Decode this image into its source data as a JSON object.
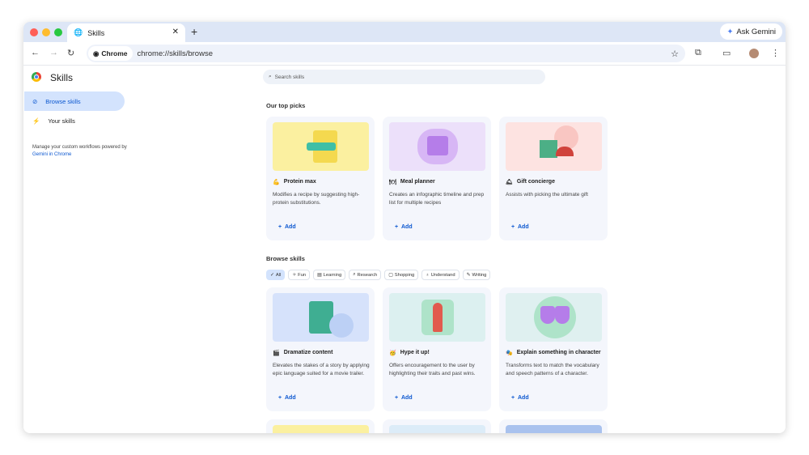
{
  "browser": {
    "tab_title": "Skills",
    "url_chip": "Chrome",
    "url": "chrome://skills/browse",
    "ask_gemini": "Ask Gemini"
  },
  "sidebar": {
    "title": "Skills",
    "items": [
      {
        "label": "Browse skills",
        "icon": "compass-icon",
        "active": true
      },
      {
        "label": "Your skills",
        "icon": "bolt-icon",
        "active": false
      }
    ],
    "note": "Manage your custom workflows powered by",
    "note_link": "Gemini in Chrome"
  },
  "search": {
    "placeholder": "Search skills"
  },
  "top_picks": {
    "heading": "Our top picks",
    "cards": [
      {
        "emoji": "💪",
        "title": "Protein max",
        "desc": "Modifies a recipe by suggesting high-protein substitutions.",
        "add": "Add",
        "color": "#fbf0a0"
      },
      {
        "emoji": "🍽",
        "title": "Meal planner",
        "desc": "Creates an infographic timeline and prep list for multiple recipes",
        "add": "Add",
        "color": "#ece0fa"
      },
      {
        "emoji": "🛎",
        "title": "Gift concierge",
        "desc": "Assists with picking the ultimate gift",
        "add": "Add",
        "color": "#fde3e1"
      }
    ]
  },
  "browse": {
    "heading": "Browse skills",
    "filters": [
      {
        "label": "All",
        "icon": "✓",
        "selected": true
      },
      {
        "label": "Fun",
        "icon": "✧"
      },
      {
        "label": "Learning",
        "icon": "▤"
      },
      {
        "label": "Research",
        "icon": "⌕"
      },
      {
        "label": "Shopping",
        "icon": "▢"
      },
      {
        "label": "Understand",
        "icon": "♁"
      },
      {
        "label": "Writing",
        "icon": "✎"
      }
    ],
    "cards": [
      {
        "emoji": "🎬",
        "title": "Dramatize content",
        "desc": "Elevates the stakes of a story by applying epic language suited for a movie trailer.",
        "add": "Add",
        "color": "#d6e2fb"
      },
      {
        "emoji": "🥳",
        "title": "Hype it up!",
        "desc": "Offers encouragement to the user by highlighting their traits and past wins.",
        "add": "Add",
        "color": "#dcf0f0"
      },
      {
        "emoji": "🎭",
        "title": "Explain something in character",
        "desc": "Transforms text to match the vocabulary and speech patterns of a character.",
        "add": "Add",
        "color": "#dff0f0"
      }
    ]
  }
}
